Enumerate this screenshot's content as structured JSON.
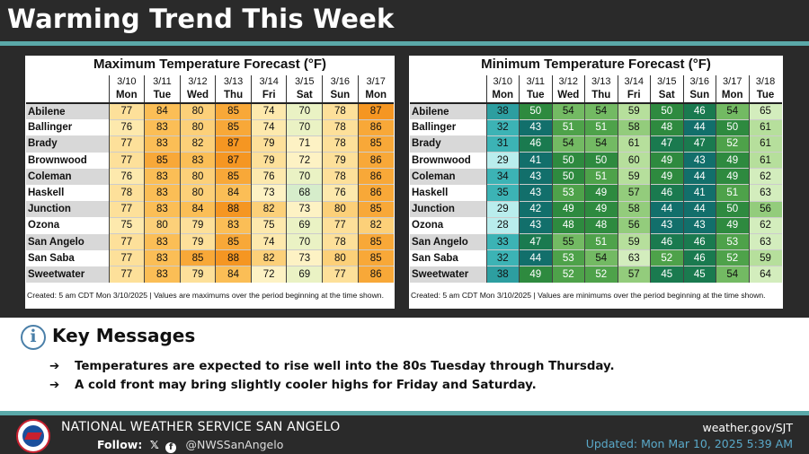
{
  "header": {
    "title": "Warming Trend This Week"
  },
  "max_table": {
    "title": "Maximum Temperature Forecast (°F)",
    "dates": [
      "3/10",
      "3/11",
      "3/12",
      "3/13",
      "3/14",
      "3/15",
      "3/16",
      "3/17"
    ],
    "days": [
      "Mon",
      "Tue",
      "Wed",
      "Thu",
      "Fri",
      "Sat",
      "Sun",
      "Mon"
    ],
    "rows": [
      {
        "city": "Abilene",
        "values": [
          77,
          84,
          80,
          85,
          74,
          70,
          78,
          87
        ]
      },
      {
        "city": "Ballinger",
        "values": [
          76,
          83,
          80,
          85,
          74,
          70,
          78,
          86
        ]
      },
      {
        "city": "Brady",
        "values": [
          77,
          83,
          82,
          87,
          79,
          71,
          78,
          85
        ]
      },
      {
        "city": "Brownwood",
        "values": [
          77,
          85,
          83,
          87,
          79,
          72,
          79,
          86
        ]
      },
      {
        "city": "Coleman",
        "values": [
          76,
          83,
          80,
          85,
          76,
          70,
          78,
          86
        ]
      },
      {
        "city": "Haskell",
        "values": [
          78,
          83,
          80,
          84,
          73,
          68,
          76,
          86
        ]
      },
      {
        "city": "Junction",
        "values": [
          77,
          83,
          84,
          88,
          82,
          73,
          80,
          85
        ]
      },
      {
        "city": "Ozona",
        "values": [
          75,
          80,
          79,
          83,
          75,
          69,
          77,
          82
        ]
      },
      {
        "city": "San Angelo",
        "values": [
          77,
          83,
          79,
          85,
          74,
          70,
          78,
          85
        ]
      },
      {
        "city": "San Saba",
        "values": [
          77,
          83,
          85,
          88,
          82,
          73,
          80,
          85
        ]
      },
      {
        "city": "Sweetwater",
        "values": [
          77,
          83,
          79,
          84,
          72,
          69,
          77,
          86
        ]
      }
    ],
    "footnote": "Created: 5 am CDT Mon 3/10/2025  |  Values are maximums over the period beginning at the time shown."
  },
  "min_table": {
    "title": "Minimum Temperature Forecast (°F)",
    "dates": [
      "3/10",
      "3/11",
      "3/12",
      "3/13",
      "3/14",
      "3/15",
      "3/16",
      "3/17",
      "3/18"
    ],
    "days": [
      "Mon",
      "Tue",
      "Wed",
      "Thu",
      "Fri",
      "Sat",
      "Sun",
      "Mon",
      "Tue"
    ],
    "rows": [
      {
        "city": "Abilene",
        "values": [
          38,
          50,
          54,
          54,
          59,
          50,
          46,
          54,
          65
        ]
      },
      {
        "city": "Ballinger",
        "values": [
          32,
          43,
          51,
          51,
          58,
          48,
          44,
          50,
          61
        ]
      },
      {
        "city": "Brady",
        "values": [
          31,
          46,
          54,
          54,
          61,
          47,
          47,
          52,
          61
        ]
      },
      {
        "city": "Brownwood",
        "values": [
          29,
          41,
          50,
          50,
          60,
          49,
          43,
          49,
          61
        ]
      },
      {
        "city": "Coleman",
        "values": [
          34,
          43,
          50,
          51,
          59,
          49,
          44,
          49,
          62
        ]
      },
      {
        "city": "Haskell",
        "values": [
          35,
          43,
          53,
          49,
          57,
          46,
          41,
          51,
          63
        ]
      },
      {
        "city": "Junction",
        "values": [
          29,
          42,
          49,
          49,
          58,
          44,
          44,
          50,
          56
        ]
      },
      {
        "city": "Ozona",
        "values": [
          28,
          43,
          48,
          48,
          56,
          43,
          43,
          49,
          62
        ]
      },
      {
        "city": "San Angelo",
        "values": [
          33,
          47,
          55,
          51,
          59,
          46,
          46,
          53,
          63
        ]
      },
      {
        "city": "San Saba",
        "values": [
          32,
          44,
          53,
          54,
          63,
          52,
          46,
          52,
          59
        ]
      },
      {
        "city": "Sweetwater",
        "values": [
          38,
          49,
          52,
          52,
          57,
          45,
          45,
          54,
          64
        ]
      }
    ],
    "footnote": "Created: 5 am CDT Mon 3/10/2025  |  Values are minimums over the period beginning at the time shown."
  },
  "key_messages": {
    "icon": "info-icon",
    "title": "Key Messages",
    "bullet_glyph": "➔",
    "items": [
      "Temperatures are expected to rise well into the 80s Tuesday through Thursday.",
      "A cold front may bring slightly cooler highs for Friday and Saturday."
    ]
  },
  "footer": {
    "office": "NATIONAL WEATHER SERVICE SAN ANGELO",
    "follow_label": "Follow:",
    "social_icons": [
      "x-icon",
      "facebook-icon"
    ],
    "handle": "@NWSSanAngelo",
    "website": "weather.gov/SJT",
    "updated": "Updated: Mon Mar 10, 2025 5:39 AM"
  },
  "colors": {
    "accent_line": "#5aa9a9",
    "background_dark": "#2a2a2a",
    "updated_text": "#5aa9c9"
  }
}
